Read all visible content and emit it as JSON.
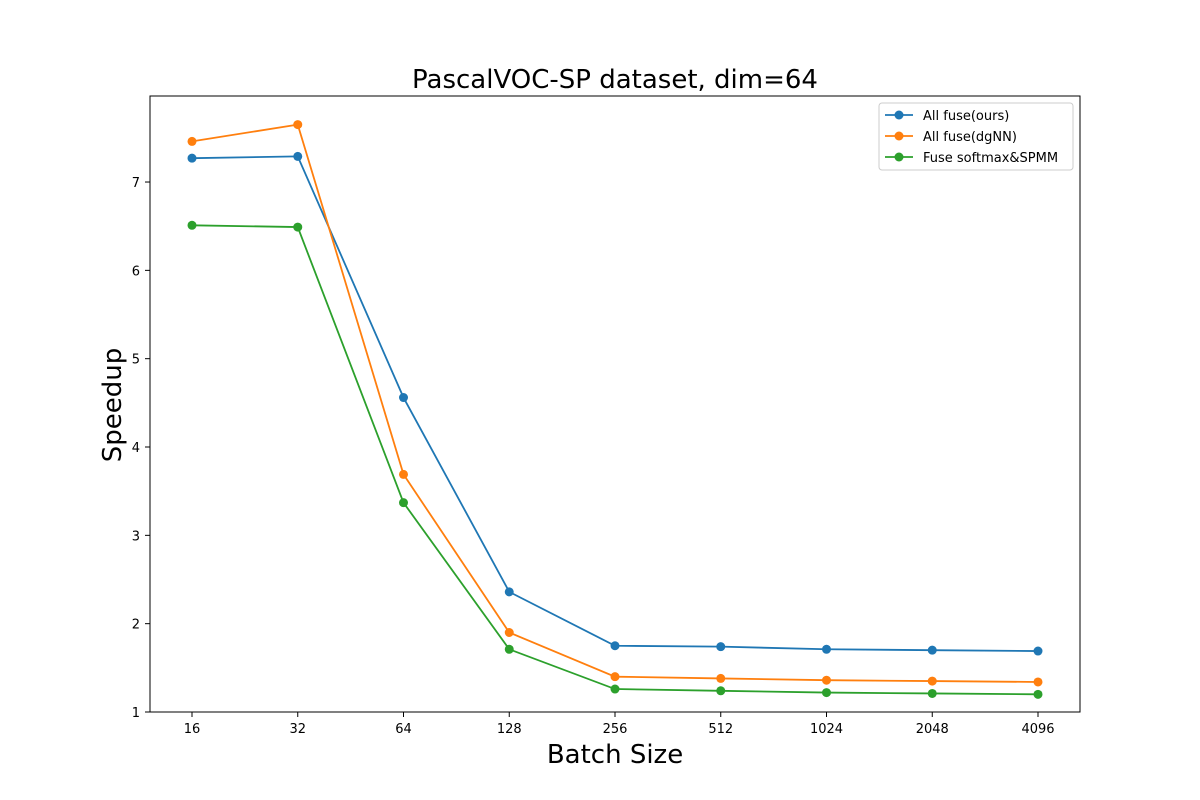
{
  "chart_data": {
    "type": "line",
    "title": "PascalVOC-SP dataset, dim=64",
    "xlabel": "Batch Size",
    "ylabel": "Speedup",
    "categories": [
      "16",
      "32",
      "64",
      "128",
      "256",
      "512",
      "1024",
      "2048",
      "4096"
    ],
    "ylim": [
      1,
      8
    ],
    "yticks": [
      1,
      2,
      3,
      4,
      5,
      6,
      7
    ],
    "grid": false,
    "legend_position": "top-right",
    "series": [
      {
        "name": "All fuse(ours)",
        "color": "#1f77b4",
        "values": [
          7.27,
          7.29,
          4.56,
          2.36,
          1.75,
          1.74,
          1.71,
          1.7,
          1.69
        ]
      },
      {
        "name": "All fuse(dgNN)",
        "color": "#ff7f0e",
        "values": [
          7.46,
          7.65,
          3.69,
          1.9,
          1.4,
          1.38,
          1.36,
          1.35,
          1.34
        ]
      },
      {
        "name": "Fuse softmax&SPMM",
        "color": "#2ca02c",
        "values": [
          6.51,
          6.49,
          3.37,
          1.71,
          1.26,
          1.24,
          1.22,
          1.21,
          1.2
        ]
      }
    ]
  }
}
